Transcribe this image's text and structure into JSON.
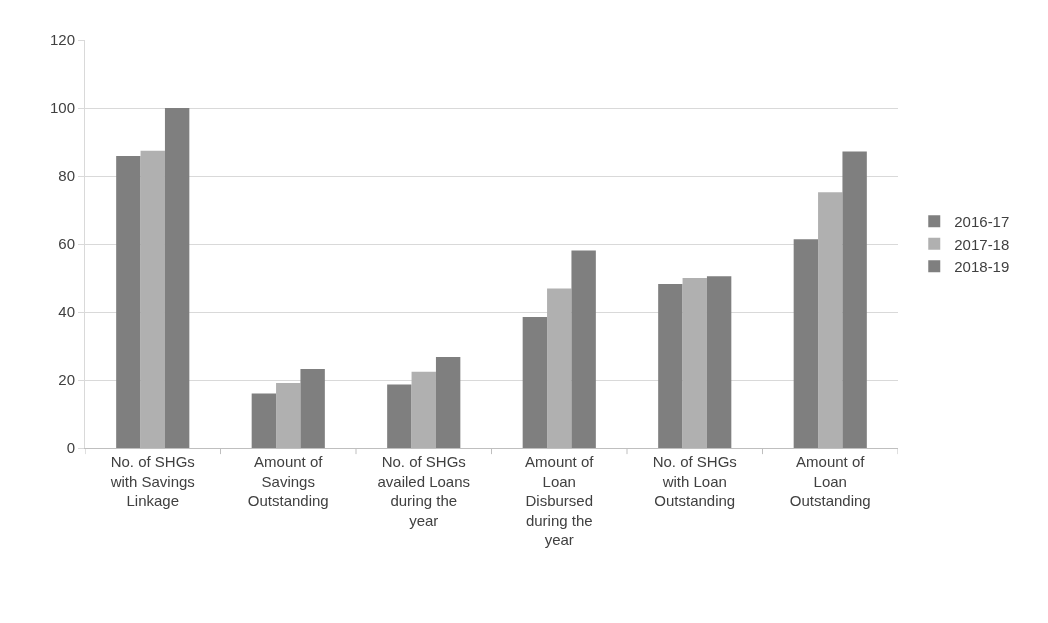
{
  "chart_data": {
    "type": "bar",
    "categories": [
      "No. of SHGs with Savings Linkage",
      "Amount of Savings Outstanding",
      "No. of SHGs availed Loans during the year",
      "Amount of Loan Disbursed during the year",
      "No. of SHGs with Loan Outstanding",
      "Amount of Loan Outstanding"
    ],
    "series": [
      {
        "name": "2016-17",
        "color": "#7f7f7f",
        "values": [
          85.9,
          16.0,
          18.7,
          38.5,
          48.2,
          61.4
        ]
      },
      {
        "name": "2017-18",
        "color": "#b0b0b0",
        "values": [
          87.4,
          19.1,
          22.4,
          46.9,
          50.0,
          75.2
        ]
      },
      {
        "name": "2018-19",
        "color": "#7f7f7f",
        "values": [
          100,
          23.2,
          26.8,
          58.1,
          50.5,
          87.2
        ]
      }
    ],
    "ylim": [
      0,
      120
    ],
    "yticks": [
      0,
      20,
      40,
      60,
      80,
      100,
      120
    ],
    "grid": "y",
    "legend": "right"
  }
}
